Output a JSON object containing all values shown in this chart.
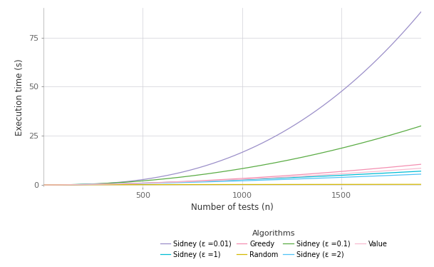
{
  "xlabel": "Number of tests (n)",
  "ylabel": "Execution time (s)",
  "xlim": [
    0,
    1900
  ],
  "ylim": [
    -1,
    90
  ],
  "x_ticks": [
    500,
    1000,
    1500
  ],
  "y_ticks": [
    0,
    25,
    50,
    75
  ],
  "x_max": 1900,
  "curves": [
    {
      "label": "Sidney (ε =0.01)",
      "color": "#9b8fc9",
      "end_val": 88,
      "power": 2.6
    },
    {
      "label": "Sidney (ε =0.1)",
      "color": "#5aac44",
      "end_val": 30,
      "power": 2.0
    },
    {
      "label": "Sidney (ε =1)",
      "color": "#00bcd4",
      "end_val": 7.0,
      "power": 1.5
    },
    {
      "label": "Sidney (ε =2)",
      "color": "#4fc3f7",
      "end_val": 5.5,
      "power": 1.5
    },
    {
      "label": "Greedy",
      "color": "#f48fb1",
      "end_val": 10.5,
      "power": 1.8
    },
    {
      "label": "Random",
      "color": "#d4b800",
      "end_val": 0.3,
      "power": 0.5
    },
    {
      "label": "Value",
      "color": "#f8bbd0",
      "end_val": 8.5,
      "power": 1.7
    }
  ],
  "background_color": "#ffffff",
  "plot_bg_color": "#ffffff",
  "grid_color": "#d0d0d8",
  "legend_title": "Algorithms",
  "legend_row1": [
    0,
    2,
    4,
    5
  ],
  "legend_row2": [
    1,
    3,
    6
  ]
}
